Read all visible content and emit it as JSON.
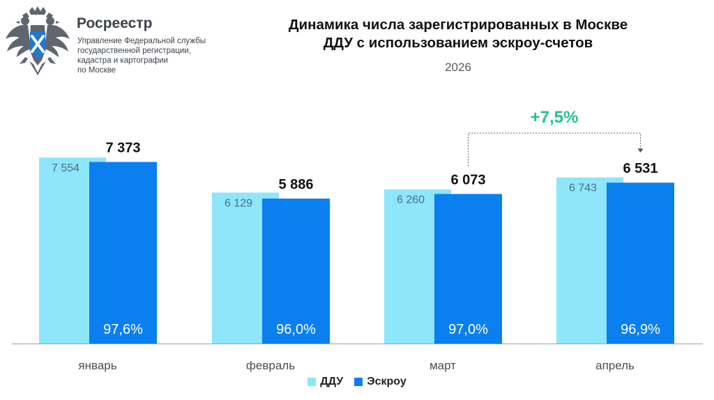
{
  "header": {
    "org_name": "Росреестр",
    "org_sub_lines": [
      "Управление Федеральной службы",
      "государственной регистрации,",
      "кадастра и картографии",
      "по Москве"
    ]
  },
  "icons": {
    "logo": "double-headed-eagle-emblem-icon"
  },
  "colors": {
    "ddu": "#8ee6fb",
    "escrow": "#0a7ff0",
    "growth": "#1fc48e",
    "text_dark": "#111111",
    "ddu_label": "#4a6d80",
    "baseline": "#9aa0a6"
  },
  "chart_data": {
    "type": "bar",
    "title_lines": [
      "Динамика числа зарегистрированных в Москве",
      "ДДУ с использованием эскроу-счетов"
    ],
    "subtitle": "2026",
    "categories": [
      "январь",
      "февраль",
      "март",
      "апрель"
    ],
    "series": [
      {
        "name": "ДДУ",
        "values": [
          7554,
          6129,
          6260,
          6743
        ],
        "labels": [
          "7 554",
          "6 129",
          "6 260",
          "6 743"
        ]
      },
      {
        "name": "Эскроу",
        "values": [
          7373,
          5886,
          6073,
          6531
        ],
        "labels": [
          "7 373",
          "5 886",
          "6 073",
          "6 531"
        ]
      }
    ],
    "share_labels": [
      "97,6%",
      "96,0%",
      "97,0%",
      "96,9%"
    ],
    "annotation": {
      "text": "+7,5%",
      "from_category": "март",
      "to_category": "апрель"
    },
    "ylim": [
      0,
      7554
    ],
    "grid": false,
    "legend_position": "bottom-center"
  }
}
